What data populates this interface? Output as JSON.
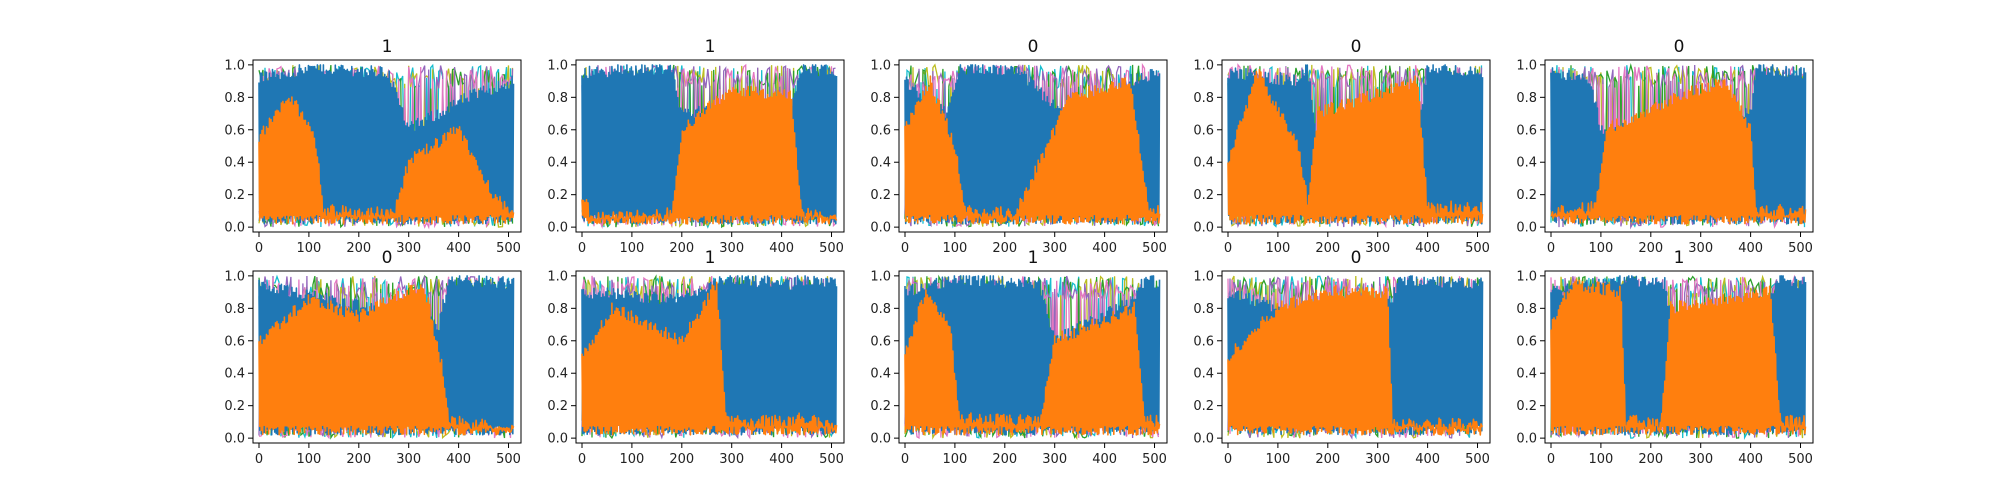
{
  "figure": {
    "background": "#ffffff"
  },
  "style": {
    "series_colors": [
      "#1f77b4",
      "#ff7f0e",
      "#17becf",
      "#bcbd22",
      "#2ca02c",
      "#9467bd",
      "#e377c2"
    ],
    "axes_edge": "#000000"
  },
  "chart_data": [
    {
      "type": "line",
      "title": "1",
      "xlim": [
        -12,
        525
      ],
      "ylim": [
        -0.03,
        1.03
      ],
      "xticks": [
        0,
        100,
        200,
        300,
        400,
        500
      ],
      "yticks": [
        0.0,
        0.2,
        0.4,
        0.6,
        0.8,
        1.0
      ],
      "x_range": [
        0,
        511
      ],
      "series": [
        {
          "color": "#1f77b4",
          "envelope": [
            [
              0,
              0.92
            ],
            [
              120,
              0.98
            ],
            [
              260,
              0.95
            ],
            [
              300,
              0.6
            ],
            [
              420,
              0.8
            ],
            [
              511,
              0.9
            ]
          ]
        },
        {
          "color": "#ff7f0e",
          "envelope": [
            [
              0,
              0.55
            ],
            [
              60,
              0.8
            ],
            [
              110,
              0.6
            ],
            [
              130,
              0.1
            ],
            [
              270,
              0.08
            ],
            [
              300,
              0.4
            ],
            [
              400,
              0.6
            ],
            [
              470,
              0.2
            ],
            [
              511,
              0.05
            ]
          ]
        }
      ]
    },
    {
      "type": "line",
      "title": "1",
      "xlim": [
        -12,
        525
      ],
      "ylim": [
        -0.03,
        1.03
      ],
      "xticks": [
        0,
        100,
        200,
        300,
        400,
        500
      ],
      "yticks": [
        0.0,
        0.2,
        0.4,
        0.6,
        0.8,
        1.0
      ],
      "x_range": [
        0,
        511
      ],
      "series": [
        {
          "color": "#1f77b4",
          "envelope": [
            [
              0,
              0.95
            ],
            [
              180,
              0.98
            ],
            [
              200,
              0.7
            ],
            [
              420,
              0.75
            ],
            [
              440,
              0.98
            ],
            [
              511,
              0.95
            ]
          ]
        },
        {
          "color": "#ff7f0e",
          "envelope": [
            [
              0,
              0.2
            ],
            [
              20,
              0.05
            ],
            [
              180,
              0.08
            ],
            [
              200,
              0.6
            ],
            [
              300,
              0.85
            ],
            [
              420,
              0.8
            ],
            [
              440,
              0.08
            ],
            [
              511,
              0.05
            ]
          ]
        }
      ]
    },
    {
      "type": "line",
      "title": "0",
      "xlim": [
        -12,
        525
      ],
      "ylim": [
        -0.03,
        1.03
      ],
      "xticks": [
        0,
        100,
        200,
        300,
        400,
        500
      ],
      "yticks": [
        0.0,
        0.2,
        0.4,
        0.6,
        0.8,
        1.0
      ],
      "x_range": [
        0,
        511
      ],
      "series": [
        {
          "color": "#1f77b4",
          "envelope": [
            [
              0,
              0.9
            ],
            [
              80,
              0.7
            ],
            [
              110,
              0.98
            ],
            [
              230,
              0.95
            ],
            [
              350,
              0.6
            ],
            [
              450,
              0.9
            ],
            [
              511,
              0.95
            ]
          ]
        },
        {
          "color": "#ff7f0e",
          "envelope": [
            [
              0,
              0.6
            ],
            [
              50,
              0.9
            ],
            [
              100,
              0.5
            ],
            [
              120,
              0.1
            ],
            [
              220,
              0.08
            ],
            [
              270,
              0.4
            ],
            [
              330,
              0.8
            ],
            [
              450,
              0.9
            ],
            [
              490,
              0.1
            ],
            [
              511,
              0.1
            ]
          ]
        }
      ]
    },
    {
      "type": "line",
      "title": "0",
      "xlim": [
        -12,
        525
      ],
      "ylim": [
        -0.03,
        1.03
      ],
      "xticks": [
        0,
        100,
        200,
        300,
        400,
        500
      ],
      "yticks": [
        0.0,
        0.2,
        0.4,
        0.6,
        0.8,
        1.0
      ],
      "x_range": [
        0,
        511
      ],
      "series": [
        {
          "color": "#1f77b4",
          "envelope": [
            [
              0,
              0.95
            ],
            [
              140,
              0.9
            ],
            [
              160,
              0.98
            ],
            [
              180,
              0.5
            ],
            [
              380,
              0.6
            ],
            [
              400,
              0.98
            ],
            [
              511,
              0.95
            ]
          ]
        },
        {
          "color": "#ff7f0e",
          "envelope": [
            [
              0,
              0.4
            ],
            [
              60,
              0.95
            ],
            [
              140,
              0.5
            ],
            [
              160,
              0.15
            ],
            [
              180,
              0.7
            ],
            [
              380,
              0.9
            ],
            [
              400,
              0.12
            ],
            [
              511,
              0.12
            ]
          ]
        }
      ]
    },
    {
      "type": "line",
      "title": "0",
      "xlim": [
        -12,
        525
      ],
      "ylim": [
        -0.03,
        1.03
      ],
      "xticks": [
        0,
        100,
        200,
        300,
        400,
        500
      ],
      "yticks": [
        0.0,
        0.2,
        0.4,
        0.6,
        0.8,
        1.0
      ],
      "x_range": [
        0,
        511
      ],
      "series": [
        {
          "color": "#1f77b4",
          "envelope": [
            [
              0,
              0.95
            ],
            [
              80,
              0.9
            ],
            [
              100,
              0.6
            ],
            [
              400,
              0.7
            ],
            [
              410,
              0.98
            ],
            [
              511,
              0.95
            ]
          ]
        },
        {
          "color": "#ff7f0e",
          "envelope": [
            [
              0,
              0.1
            ],
            [
              90,
              0.12
            ],
            [
              110,
              0.6
            ],
            [
              250,
              0.8
            ],
            [
              350,
              0.9
            ],
            [
              400,
              0.6
            ],
            [
              410,
              0.1
            ],
            [
              511,
              0.1
            ]
          ]
        }
      ]
    },
    {
      "type": "line",
      "title": "0",
      "xlim": [
        -12,
        525
      ],
      "ylim": [
        -0.03,
        1.03
      ],
      "xticks": [
        0,
        100,
        200,
        300,
        400,
        500
      ],
      "yticks": [
        0.0,
        0.2,
        0.4,
        0.6,
        0.8,
        1.0
      ],
      "x_range": [
        0,
        511
      ],
      "series": [
        {
          "color": "#1f77b4",
          "envelope": [
            [
              0,
              0.95
            ],
            [
              360,
              0.7
            ],
            [
              380,
              0.98
            ],
            [
              511,
              0.95
            ]
          ]
        },
        {
          "color": "#ff7f0e",
          "envelope": [
            [
              0,
              0.6
            ],
            [
              100,
              0.85
            ],
            [
              200,
              0.75
            ],
            [
              330,
              0.95
            ],
            [
              370,
              0.4
            ],
            [
              380,
              0.1
            ],
            [
              511,
              0.06
            ]
          ]
        }
      ]
    },
    {
      "type": "line",
      "title": "1",
      "xlim": [
        -12,
        525
      ],
      "ylim": [
        -0.03,
        1.03
      ],
      "xticks": [
        0,
        100,
        200,
        300,
        400,
        500
      ],
      "yticks": [
        0.0,
        0.2,
        0.4,
        0.6,
        0.8,
        1.0
      ],
      "x_range": [
        0,
        511
      ],
      "series": [
        {
          "color": "#1f77b4",
          "envelope": [
            [
              0,
              0.9
            ],
            [
              200,
              0.85
            ],
            [
              280,
              0.98
            ],
            [
              420,
              0.95
            ],
            [
              430,
              0.98
            ],
            [
              511,
              0.95
            ]
          ]
        },
        {
          "color": "#ff7f0e",
          "envelope": [
            [
              0,
              0.5
            ],
            [
              60,
              0.8
            ],
            [
              200,
              0.6
            ],
            [
              270,
              0.95
            ],
            [
              290,
              0.1
            ],
            [
              420,
              0.1
            ],
            [
              430,
              0.12
            ],
            [
              511,
              0.08
            ]
          ]
        }
      ]
    },
    {
      "type": "line",
      "title": "1",
      "xlim": [
        -12,
        525
      ],
      "ylim": [
        -0.03,
        1.03
      ],
      "xticks": [
        0,
        100,
        200,
        300,
        400,
        500
      ],
      "yticks": [
        0.0,
        0.2,
        0.4,
        0.6,
        0.8,
        1.0
      ],
      "x_range": [
        0,
        511
      ],
      "series": [
        {
          "color": "#1f77b4",
          "envelope": [
            [
              0,
              0.9
            ],
            [
              100,
              0.98
            ],
            [
              270,
              0.95
            ],
            [
              300,
              0.6
            ],
            [
              460,
              0.85
            ],
            [
              480,
              0.98
            ],
            [
              511,
              0.95
            ]
          ]
        },
        {
          "color": "#ff7f0e",
          "envelope": [
            [
              0,
              0.5
            ],
            [
              40,
              0.9
            ],
            [
              90,
              0.7
            ],
            [
              110,
              0.12
            ],
            [
              270,
              0.1
            ],
            [
              300,
              0.6
            ],
            [
              460,
              0.8
            ],
            [
              480,
              0.1
            ],
            [
              511,
              0.1
            ]
          ]
        }
      ]
    },
    {
      "type": "line",
      "title": "0",
      "xlim": [
        -12,
        525
      ],
      "ylim": [
        -0.03,
        1.03
      ],
      "xticks": [
        0,
        100,
        200,
        300,
        400,
        500
      ],
      "yticks": [
        0.0,
        0.2,
        0.4,
        0.6,
        0.8,
        1.0
      ],
      "x_range": [
        0,
        511
      ],
      "series": [
        {
          "color": "#1f77b4",
          "envelope": [
            [
              0,
              0.9
            ],
            [
              200,
              0.7
            ],
            [
              330,
              0.85
            ],
            [
              340,
              0.98
            ],
            [
              511,
              0.95
            ]
          ]
        },
        {
          "color": "#ff7f0e",
          "envelope": [
            [
              0,
              0.5
            ],
            [
              100,
              0.8
            ],
            [
              200,
              0.9
            ],
            [
              320,
              0.9
            ],
            [
              330,
              0.1
            ],
            [
              511,
              0.08
            ]
          ]
        }
      ]
    },
    {
      "type": "line",
      "title": "1",
      "xlim": [
        -12,
        525
      ],
      "ylim": [
        -0.03,
        1.03
      ],
      "xticks": [
        0,
        100,
        200,
        300,
        400,
        500
      ],
      "yticks": [
        0.0,
        0.2,
        0.4,
        0.6,
        0.8,
        1.0
      ],
      "x_range": [
        0,
        511
      ],
      "series": [
        {
          "color": "#1f77b4",
          "envelope": [
            [
              0,
              0.9
            ],
            [
              140,
              0.98
            ],
            [
              230,
              0.95
            ],
            [
              240,
              0.7
            ],
            [
              440,
              0.85
            ],
            [
              460,
              0.98
            ],
            [
              511,
              0.95
            ]
          ]
        },
        {
          "color": "#ff7f0e",
          "envelope": [
            [
              0,
              0.7
            ],
            [
              40,
              0.95
            ],
            [
              140,
              0.9
            ],
            [
              150,
              0.1
            ],
            [
              220,
              0.1
            ],
            [
              240,
              0.8
            ],
            [
              440,
              0.9
            ],
            [
              460,
              0.1
            ],
            [
              511,
              0.1
            ]
          ]
        }
      ]
    }
  ]
}
